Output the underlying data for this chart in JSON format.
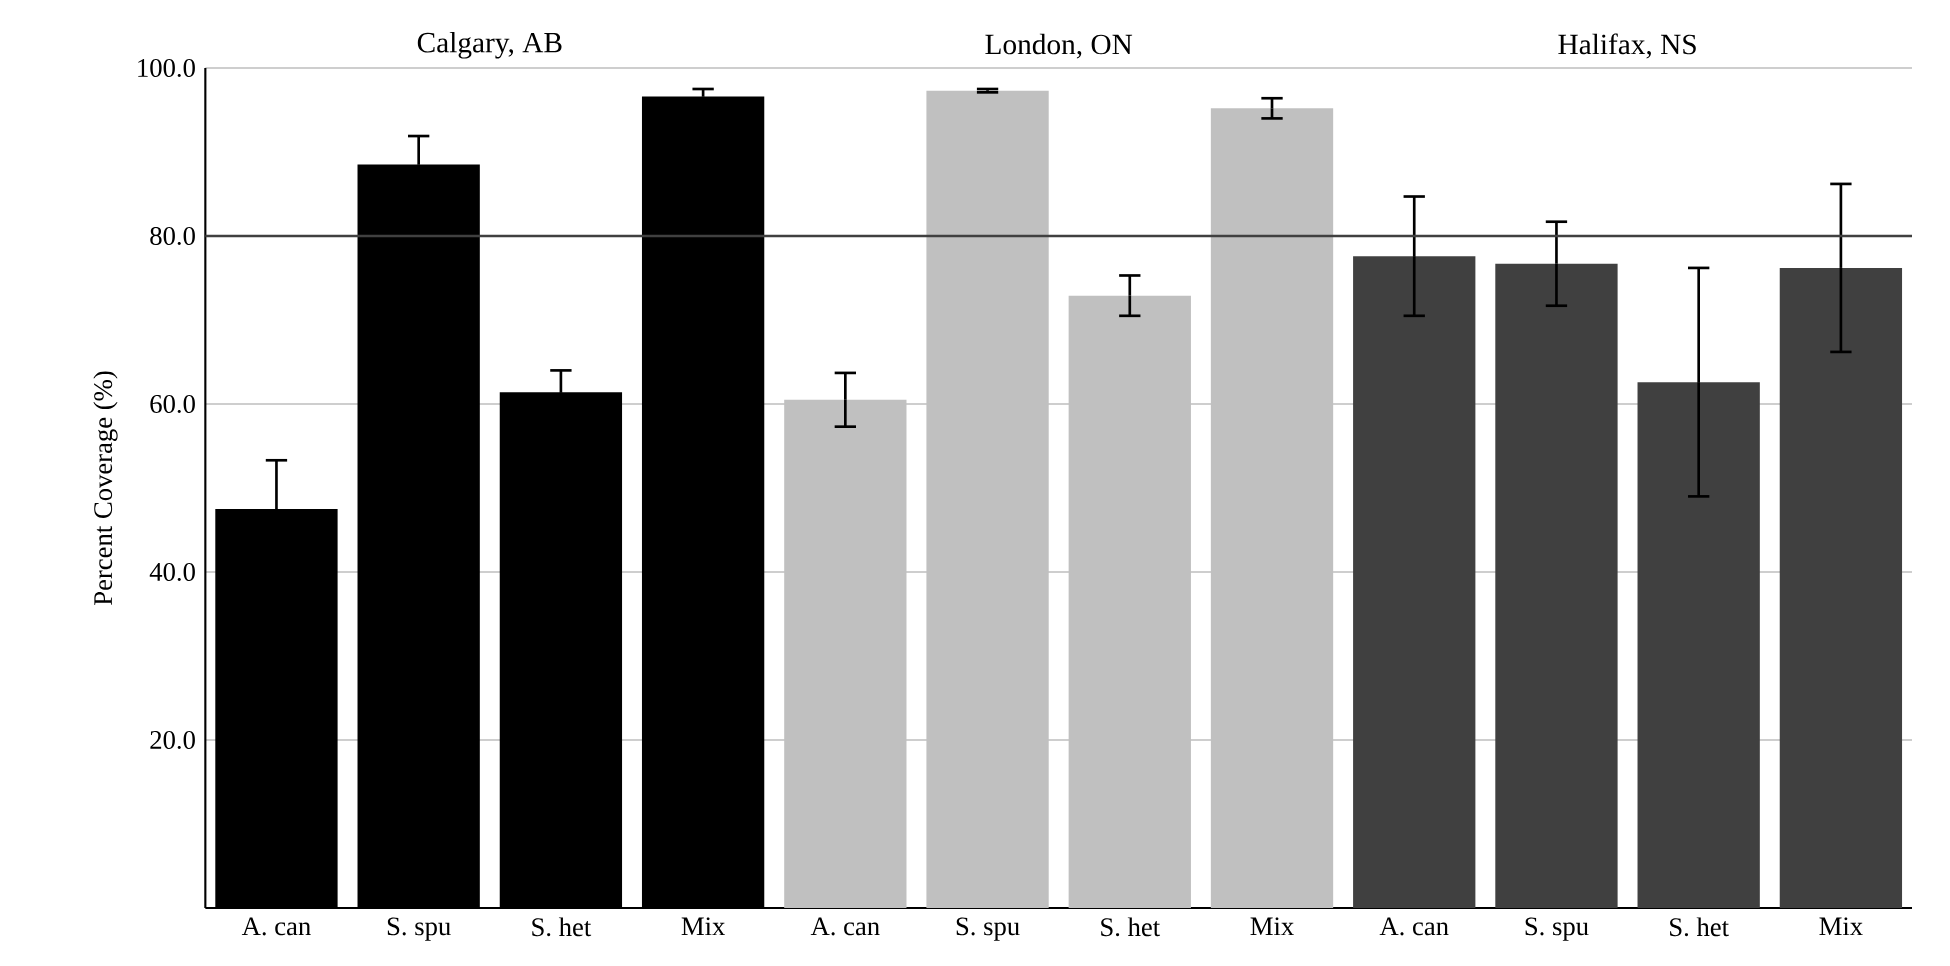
{
  "chart_data": {
    "type": "bar",
    "ylabel": "Percent Coverage (%)",
    "categories": [
      "A. can",
      "S. spu",
      "S. het",
      "Mix",
      "A. can",
      "S. spu",
      "S. het",
      "Mix",
      "A. can",
      "S. spu",
      "S. het",
      "Mix"
    ],
    "values": [
      47.5,
      88.5,
      61.4,
      96.6,
      60.5,
      97.3,
      72.9,
      95.2,
      77.6,
      76.7,
      62.6,
      76.2
    ],
    "errors": [
      5.8,
      3.4,
      2.6,
      0.9,
      3.2,
      0.2,
      2.4,
      1.2,
      7.1,
      5.0,
      13.6,
      10.0
    ],
    "colors": [
      "#000000",
      "#000000",
      "#000000",
      "#000000",
      "#c0c0c0",
      "#c0c0c0",
      "#c0c0c0",
      "#c0c0c0",
      "#404040",
      "#404040",
      "#404040",
      "#404040"
    ],
    "annotations": [
      "Calgary, AB",
      "London, ON",
      "Halifax, NS"
    ],
    "ylim": [
      0,
      100
    ],
    "yticks": [
      {
        "value": 20,
        "label": "20.0"
      },
      {
        "value": 40,
        "label": "40.0"
      },
      {
        "value": 60,
        "label": "60.0"
      },
      {
        "value": 80,
        "label": "80.0"
      },
      {
        "value": 100,
        "label": "100.0"
      }
    ],
    "grid": "y",
    "ref_lines": [
      {
        "axis": "y",
        "value": 80,
        "color": "#404040"
      }
    ]
  }
}
